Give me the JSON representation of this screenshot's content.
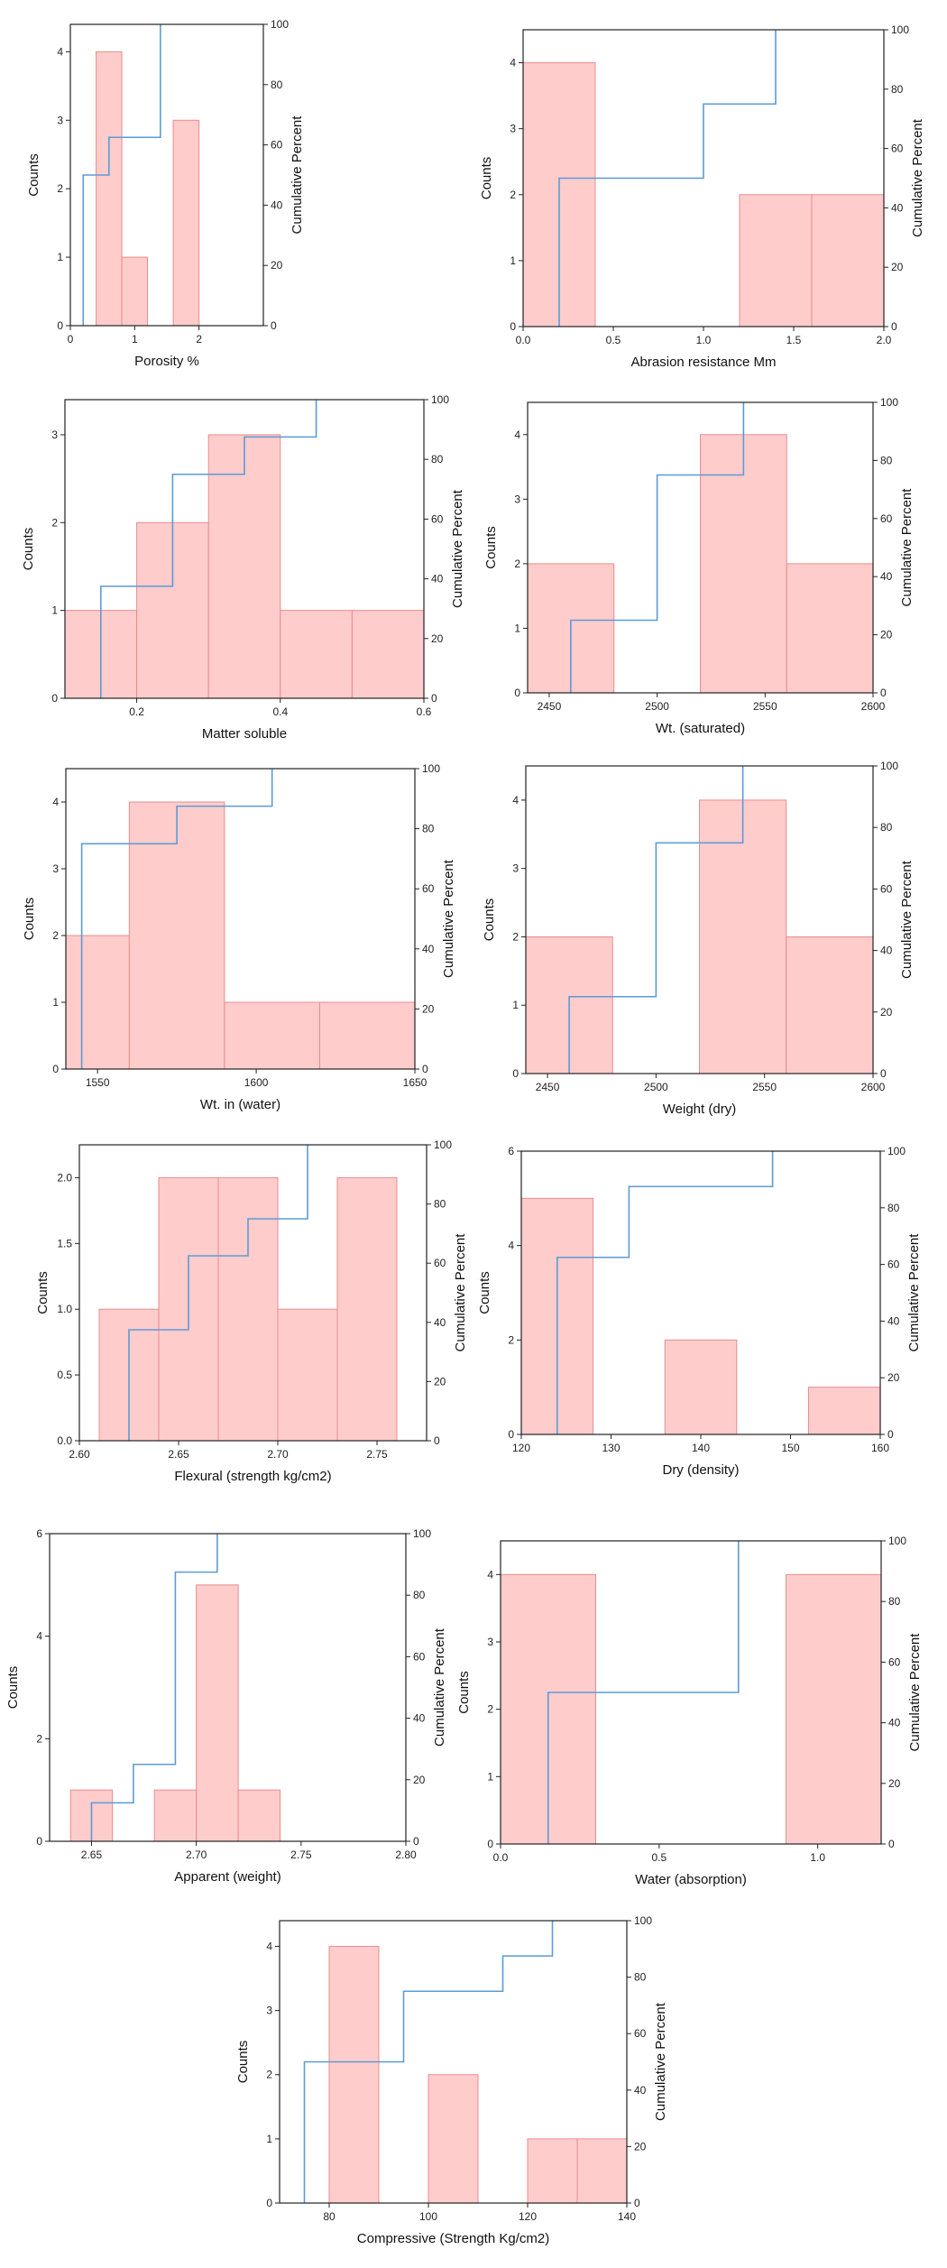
{
  "chart_data": [
    {
      "type": "histogram",
      "xlabel": "Porosity %",
      "ylabel": "Counts",
      "y2label": "Cumulative Percent",
      "xlim": [
        0,
        3
      ],
      "ylim": [
        0,
        4.4
      ],
      "y2lim": [
        0,
        100
      ],
      "xticks": [
        0,
        1,
        2
      ],
      "yticks": [
        0,
        1,
        2,
        3,
        4
      ],
      "y2ticks": [
        0,
        20,
        40,
        60,
        80,
        100
      ],
      "bins": [
        [
          0.4,
          0.8,
          4
        ],
        [
          0.8,
          1.2,
          1
        ],
        [
          1.6,
          2.0,
          3
        ]
      ],
      "cumulative": [
        [
          0.2,
          50
        ],
        [
          0.6,
          62.5
        ],
        [
          1.4,
          100
        ]
      ]
    },
    {
      "type": "histogram",
      "xlabel": "Abrasion resistance Mm",
      "ylabel": "Counts",
      "y2label": "Cumulative Percent",
      "xlim": [
        0,
        2.0
      ],
      "ylim": [
        0,
        4.5
      ],
      "y2lim": [
        0,
        100
      ],
      "xticks": [
        0.0,
        0.5,
        1.0,
        1.5,
        2.0
      ],
      "yticks": [
        0,
        1,
        2,
        3,
        4
      ],
      "y2ticks": [
        0,
        20,
        40,
        60,
        80,
        100
      ],
      "tick_decimals": 1,
      "bins": [
        [
          0.0,
          0.4,
          4
        ],
        [
          1.2,
          1.6,
          2
        ],
        [
          1.6,
          2.0,
          2
        ]
      ],
      "cumulative": [
        [
          0.2,
          50
        ],
        [
          1.0,
          75
        ],
        [
          1.4,
          100
        ]
      ]
    },
    {
      "type": "histogram",
      "xlabel": "Matter soluble",
      "ylabel": "Counts",
      "y2label": "Cumulative Percent",
      "xlim": [
        0.1,
        0.6
      ],
      "ylim": [
        0,
        3.4
      ],
      "y2lim": [
        0,
        100
      ],
      "xticks": [
        0.2,
        0.4,
        0.6
      ],
      "yticks": [
        0,
        1,
        2,
        3
      ],
      "y2ticks": [
        0,
        20,
        40,
        60,
        80,
        100
      ],
      "tick_decimals": 1,
      "bins": [
        [
          0.1,
          0.2,
          1
        ],
        [
          0.2,
          0.3,
          2
        ],
        [
          0.3,
          0.4,
          3
        ],
        [
          0.4,
          0.5,
          1
        ],
        [
          0.5,
          0.6,
          1
        ]
      ],
      "cumulative": [
        [
          0.15,
          12.5
        ],
        [
          0.15,
          37.5
        ],
        [
          0.25,
          37.5
        ],
        [
          0.25,
          75
        ],
        [
          0.35,
          75
        ],
        [
          0.35,
          87.5
        ],
        [
          0.45,
          87.5
        ],
        [
          0.45,
          100
        ]
      ]
    },
    {
      "type": "histogram",
      "xlabel": "Wt. (saturated)",
      "ylabel": "Counts",
      "y2label": "Cumulative Percent",
      "xlim": [
        2440,
        2600
      ],
      "ylim": [
        0,
        4.5
      ],
      "y2lim": [
        0,
        100
      ],
      "xticks": [
        2450,
        2500,
        2550,
        2600
      ],
      "yticks": [
        0,
        1,
        2,
        3,
        4
      ],
      "y2ticks": [
        0,
        20,
        40,
        60,
        80,
        100
      ],
      "bins": [
        [
          2440,
          2480,
          2
        ],
        [
          2520,
          2560,
          4
        ],
        [
          2560,
          2600,
          2
        ]
      ],
      "cumulative": [
        [
          2460,
          25
        ],
        [
          2500,
          75
        ],
        [
          2540,
          100
        ]
      ]
    },
    {
      "type": "histogram",
      "xlabel": "Wt. in (water)",
      "ylabel": "Counts",
      "y2label": "Cumulative Percent",
      "xlim": [
        1540,
        1650
      ],
      "ylim": [
        0,
        4.5
      ],
      "y2lim": [
        0,
        100
      ],
      "xticks": [
        1550,
        1600,
        1650
      ],
      "yticks": [
        0,
        1,
        2,
        3,
        4
      ],
      "y2ticks": [
        0,
        20,
        40,
        60,
        80,
        100
      ],
      "bins": [
        [
          1540,
          1560,
          2
        ],
        [
          1560,
          1590,
          4
        ],
        [
          1590,
          1620,
          1
        ],
        [
          1620,
          1650,
          1
        ]
      ],
      "cumulative": [
        [
          1545,
          25
        ],
        [
          1545,
          75
        ],
        [
          1575,
          75
        ],
        [
          1575,
          87.5
        ],
        [
          1605,
          87.5
        ],
        [
          1605,
          100
        ]
      ]
    },
    {
      "type": "histogram",
      "xlabel": "Weight (dry)",
      "ylabel": "Counts",
      "y2label": "Cumulative Percent",
      "xlim": [
        2440,
        2600
      ],
      "ylim": [
        0,
        4.5
      ],
      "y2lim": [
        0,
        100
      ],
      "xticks": [
        2450,
        2500,
        2550,
        2600
      ],
      "yticks": [
        0,
        1,
        2,
        3,
        4
      ],
      "y2ticks": [
        0,
        20,
        40,
        60,
        80,
        100
      ],
      "bins": [
        [
          2440,
          2480,
          2
        ],
        [
          2520,
          2560,
          4
        ],
        [
          2560,
          2600,
          2
        ]
      ],
      "cumulative": [
        [
          2460,
          25
        ],
        [
          2500,
          75
        ],
        [
          2540,
          100
        ]
      ]
    },
    {
      "type": "histogram",
      "xlabel": "Flexural (strength kg/cm2)",
      "ylabel": "Counts",
      "y2label": "Cumulative Percent",
      "xlim": [
        2.6,
        2.775
      ],
      "ylim": [
        0,
        2.25
      ],
      "y2lim": [
        0,
        100
      ],
      "xticks": [
        2.6,
        2.65,
        2.7,
        2.75
      ],
      "yticks": [
        0.0,
        0.5,
        1.0,
        1.5,
        2.0
      ],
      "y2ticks": [
        0,
        20,
        40,
        60,
        80,
        100
      ],
      "tick_decimals": 2,
      "ytick_decimals": 1,
      "bins": [
        [
          2.61,
          2.64,
          1
        ],
        [
          2.64,
          2.67,
          2
        ],
        [
          2.67,
          2.7,
          2
        ],
        [
          2.7,
          2.73,
          1
        ],
        [
          2.73,
          2.76,
          2
        ]
      ],
      "cumulative": [
        [
          2.625,
          12.5
        ],
        [
          2.625,
          37.5
        ],
        [
          2.655,
          37.5
        ],
        [
          2.655,
          62.5
        ],
        [
          2.685,
          62.5
        ],
        [
          2.685,
          75
        ],
        [
          2.715,
          75
        ],
        [
          2.715,
          100
        ]
      ]
    },
    {
      "type": "histogram",
      "xlabel": "Dry (density)",
      "ylabel": "Counts",
      "y2label": "Cumulative Percent",
      "xlim": [
        120,
        160
      ],
      "ylim": [
        0,
        6
      ],
      "y2lim": [
        0,
        100
      ],
      "xticks": [
        120,
        130,
        140,
        150,
        160
      ],
      "yticks": [
        0,
        2,
        4,
        6
      ],
      "y2ticks": [
        0,
        20,
        40,
        60,
        80,
        100
      ],
      "bins": [
        [
          120,
          128,
          5
        ],
        [
          136,
          144,
          2
        ],
        [
          152,
          160,
          1
        ]
      ],
      "cumulative": [
        [
          124,
          62.5
        ],
        [
          132,
          87.5
        ],
        [
          148,
          100
        ]
      ]
    },
    {
      "type": "histogram",
      "xlabel": "Apparent (weight)",
      "ylabel": "Counts",
      "y2label": "Cumulative Percent",
      "xlim": [
        2.63,
        2.8
      ],
      "ylim": [
        0,
        6
      ],
      "y2lim": [
        0,
        100
      ],
      "xticks": [
        2.65,
        2.7,
        2.75,
        2.8
      ],
      "yticks": [
        0,
        2,
        4,
        6
      ],
      "y2ticks": [
        0,
        20,
        40,
        60,
        80,
        100
      ],
      "tick_decimals": 2,
      "bins": [
        [
          2.64,
          2.66,
          1
        ],
        [
          2.68,
          2.7,
          1
        ],
        [
          2.7,
          2.72,
          5
        ],
        [
          2.72,
          2.74,
          1
        ]
      ],
      "cumulative": [
        [
          2.65,
          12.5
        ],
        [
          2.67,
          25
        ],
        [
          2.69,
          87.5
        ],
        [
          2.71,
          100
        ]
      ]
    },
    {
      "type": "histogram",
      "xlabel": "Water (absorption)",
      "ylabel": "Counts",
      "y2label": "Cumulative Percent",
      "xlim": [
        0,
        1.2
      ],
      "ylim": [
        0,
        4.5
      ],
      "y2lim": [
        0,
        100
      ],
      "xticks": [
        0.0,
        0.5,
        1.0
      ],
      "yticks": [
        0,
        1,
        2,
        3,
        4
      ],
      "y2ticks": [
        0,
        20,
        40,
        60,
        80,
        100
      ],
      "tick_decimals": 1,
      "bins": [
        [
          0.0,
          0.3,
          4
        ],
        [
          0.9,
          1.2,
          4
        ]
      ],
      "cumulative": [
        [
          0.15,
          50
        ],
        [
          0.75,
          100
        ]
      ]
    },
    {
      "type": "histogram",
      "xlabel": "Compressive (Strength Kg/cm2)",
      "ylabel": "Counts",
      "y2label": "Cumulative Percent",
      "xlim": [
        70,
        140
      ],
      "ylim": [
        0,
        4.4
      ],
      "y2lim": [
        0,
        100
      ],
      "xticks": [
        80,
        100,
        120,
        140
      ],
      "yticks": [
        0,
        1,
        2,
        3,
        4
      ],
      "y2ticks": [
        0,
        20,
        40,
        60,
        80,
        100
      ],
      "bins": [
        [
          80,
          90,
          4
        ],
        [
          100,
          110,
          2
        ],
        [
          120,
          130,
          1
        ],
        [
          130,
          140,
          1
        ]
      ],
      "cumulative": [
        [
          75,
          50
        ],
        [
          95,
          75
        ],
        [
          115,
          87.5
        ],
        [
          125,
          100
        ]
      ]
    }
  ]
}
